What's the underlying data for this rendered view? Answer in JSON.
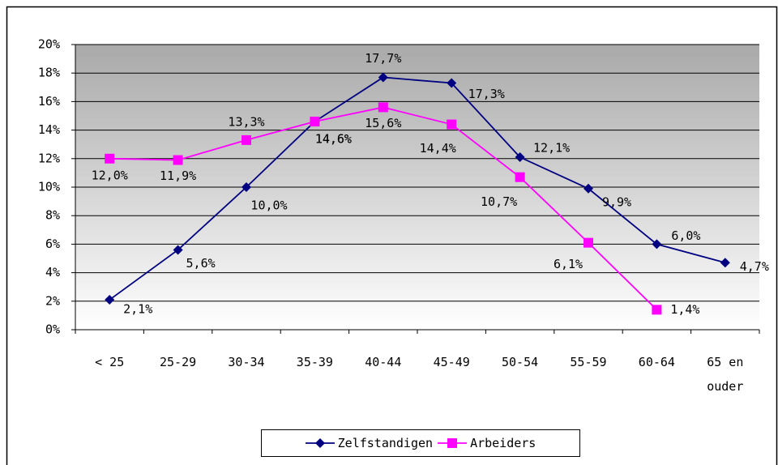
{
  "chart_data": {
    "type": "line",
    "categories": [
      "< 25",
      "25-29",
      "30-34",
      "35-39",
      "40-44",
      "45-49",
      "50-54",
      "55-59",
      "60-64",
      "65 en ouder"
    ],
    "series": [
      {
        "name": "Zelfstandigen",
        "color": "#000080",
        "marker": "diamond",
        "values": [
          2.1,
          5.6,
          10.0,
          14.6,
          17.7,
          17.3,
          12.1,
          9.9,
          6.0,
          4.7
        ],
        "value_labels": [
          "2,1%",
          "5,6%",
          "10,0%",
          "14,6%",
          "17,7%",
          "17,3%",
          "12,1%",
          "9,9%",
          "6,0%",
          "4,7%"
        ]
      },
      {
        "name": "Arbeiders",
        "color": "#ff00ff",
        "marker": "square",
        "values": [
          12.0,
          11.9,
          13.3,
          14.6,
          15.6,
          14.4,
          10.7,
          6.1,
          1.4,
          null
        ],
        "value_labels": [
          "12,0%",
          "11,9%",
          "13,3%",
          "14,6%",
          "15,6%",
          "14,4%",
          "10,7%",
          "6,1%",
          "1,4%",
          null
        ]
      }
    ],
    "ylim": [
      0,
      20
    ],
    "yticks": [
      {
        "value": 0,
        "label": "0%"
      },
      {
        "value": 2,
        "label": "2%"
      },
      {
        "value": 4,
        "label": "4%"
      },
      {
        "value": 6,
        "label": "6%"
      },
      {
        "value": 8,
        "label": "8%"
      },
      {
        "value": 10,
        "label": "10%"
      },
      {
        "value": 12,
        "label": "12%"
      },
      {
        "value": 14,
        "label": "14%"
      },
      {
        "value": 16,
        "label": "16%"
      },
      {
        "value": 18,
        "label": "18%"
      },
      {
        "value": 20,
        "label": "20%"
      }
    ],
    "grid": true,
    "legend": "bottom"
  }
}
